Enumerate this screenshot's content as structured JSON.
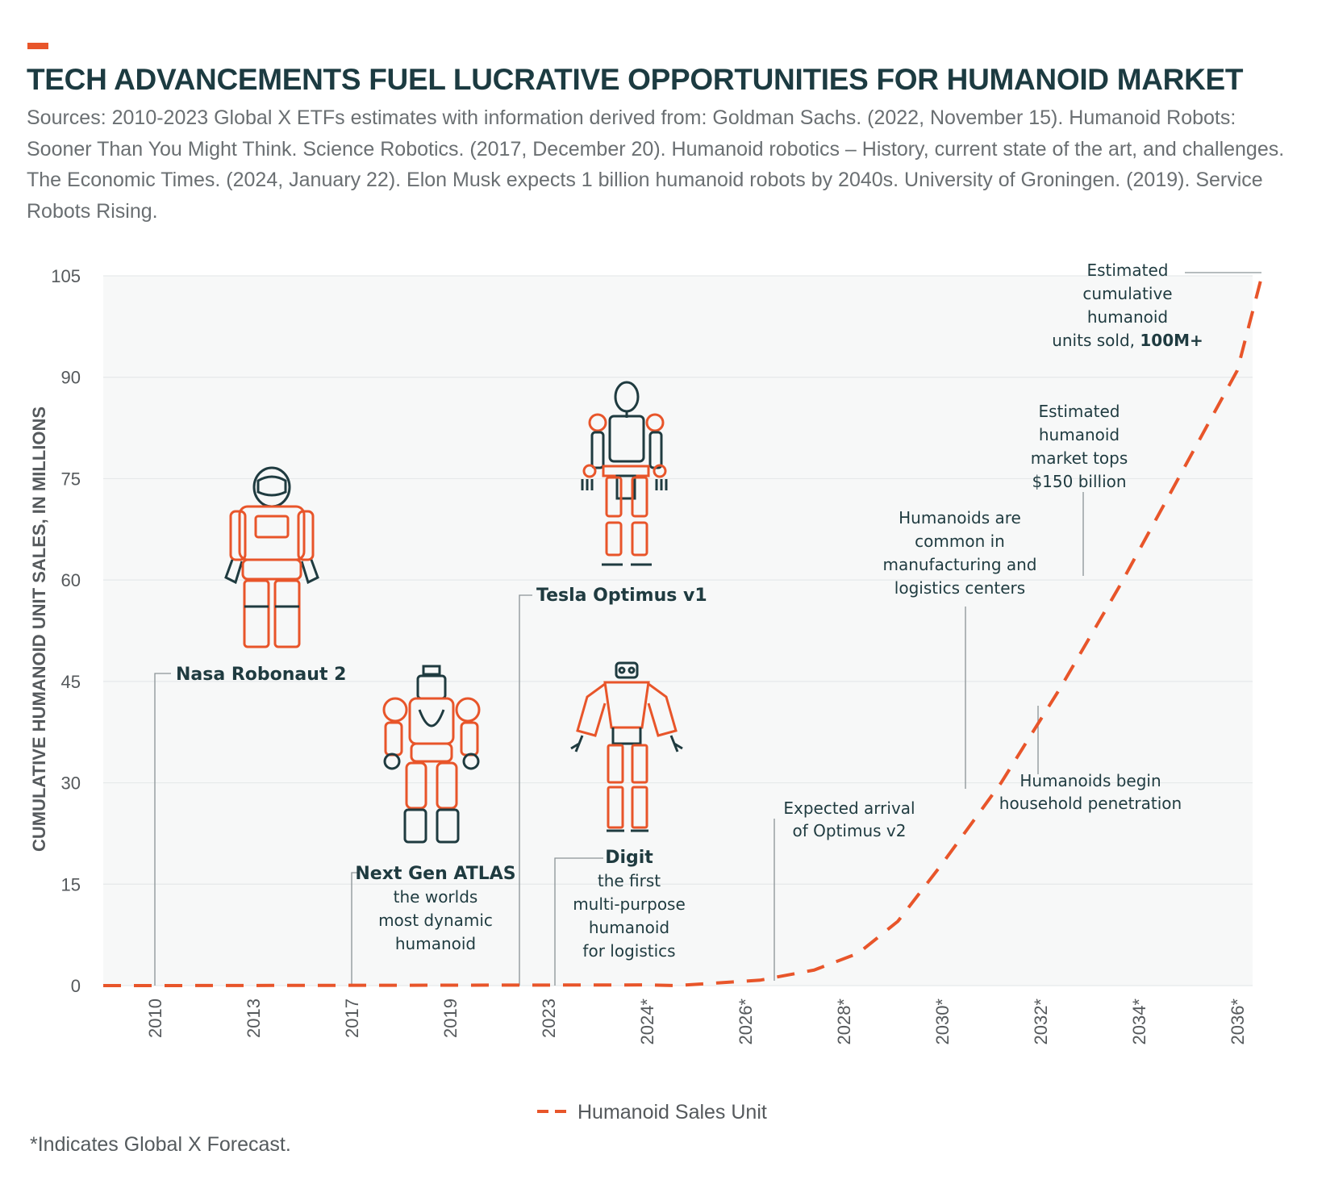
{
  "header": {
    "title": "TECH ADVANCEMENTS FUEL LUCRATIVE OPPORTUNITIES FOR HUMANOID MARKET",
    "sources": "Sources: 2010-2023 Global X ETFs estimates with information derived from: Goldman Sachs. (2022, November 15). Humanoid Robots: Sooner Than You Might Think. Science Robotics. (2017, December 20). Humanoid robotics – History, current state of the art, and challenges. The Economic Times. (2024, January 22). Elon Musk expects 1 billion humanoid robots by 2040s. University of Groningen. (2019). Service Robots Rising."
  },
  "footnote": "*Indicates Global X Forecast.",
  "colors": {
    "accent": "#e8552a",
    "title": "#1c3b41",
    "grid": "#e6e9ea",
    "plot_bg": "#f7f8f8",
    "leader": "#8b9396"
  },
  "chart_data": {
    "type": "line",
    "ylabel": "CUMULATIVE HUMANOID UNIT SALES, IN MILLIONS",
    "xlabel": "",
    "ylim": [
      0,
      105
    ],
    "yticks": [
      0,
      15,
      30,
      45,
      60,
      75,
      90,
      105
    ],
    "categories": [
      "2010",
      "2013",
      "2017",
      "2019",
      "2023",
      "2024*",
      "2026*",
      "2028*",
      "2030*",
      "2032*",
      "2034*",
      "2036*"
    ],
    "grid": true,
    "legend_position": "bottom",
    "series": [
      {
        "name": "Humanoid Sales Unit",
        "style": "dashed",
        "color": "#e8552a",
        "x": [
          0,
          5,
          5.3,
          6.15,
          6.7,
          7.15,
          7.55,
          8.0,
          8.6,
          9.2,
          9.8,
          10.4,
          11.0,
          11.25
        ],
        "values": [
          0,
          0.1,
          0,
          0.8,
          2.3,
          4.8,
          9.5,
          18,
          30,
          44,
          59,
          75,
          91,
          105
        ]
      }
    ],
    "annotations": [
      {
        "id": "robonaut",
        "lines": [
          "Nasa Robonaut 2"
        ],
        "bold_first": true,
        "robot_icon": "robonaut-icon"
      },
      {
        "id": "atlas",
        "lines": [
          "Next Gen ATLAS",
          "the worlds",
          "most dynamic",
          "humanoid"
        ],
        "bold_first": true,
        "robot_icon": "atlas-icon"
      },
      {
        "id": "optimus",
        "lines": [
          "Tesla Optimus v1"
        ],
        "bold_first": true,
        "robot_icon": "optimus-icon"
      },
      {
        "id": "digit",
        "lines": [
          "Digit",
          "the first",
          "multi-purpose",
          "humanoid",
          "for logistics"
        ],
        "bold_first": true,
        "robot_icon": "digit-icon"
      },
      {
        "id": "optimus-v2",
        "lines": [
          "Expected arrival",
          "of Optimus v2"
        ],
        "bold_first": false
      },
      {
        "id": "common",
        "lines": [
          "Humanoids are",
          "common in",
          "manufacturing and",
          "logistics centers"
        ],
        "bold_first": false
      },
      {
        "id": "household",
        "lines": [
          "Humanoids begin",
          "household penetration"
        ],
        "bold_first": false
      },
      {
        "id": "market",
        "lines": [
          "Estimated",
          "humanoid",
          "market tops",
          "$150 billion"
        ],
        "bold_first": false
      },
      {
        "id": "cumulative",
        "lines": [
          "Estimated",
          "cumulative",
          "humanoid",
          "units sold, "
        ],
        "bold_tail": "100M+",
        "bold_first": false
      }
    ]
  }
}
